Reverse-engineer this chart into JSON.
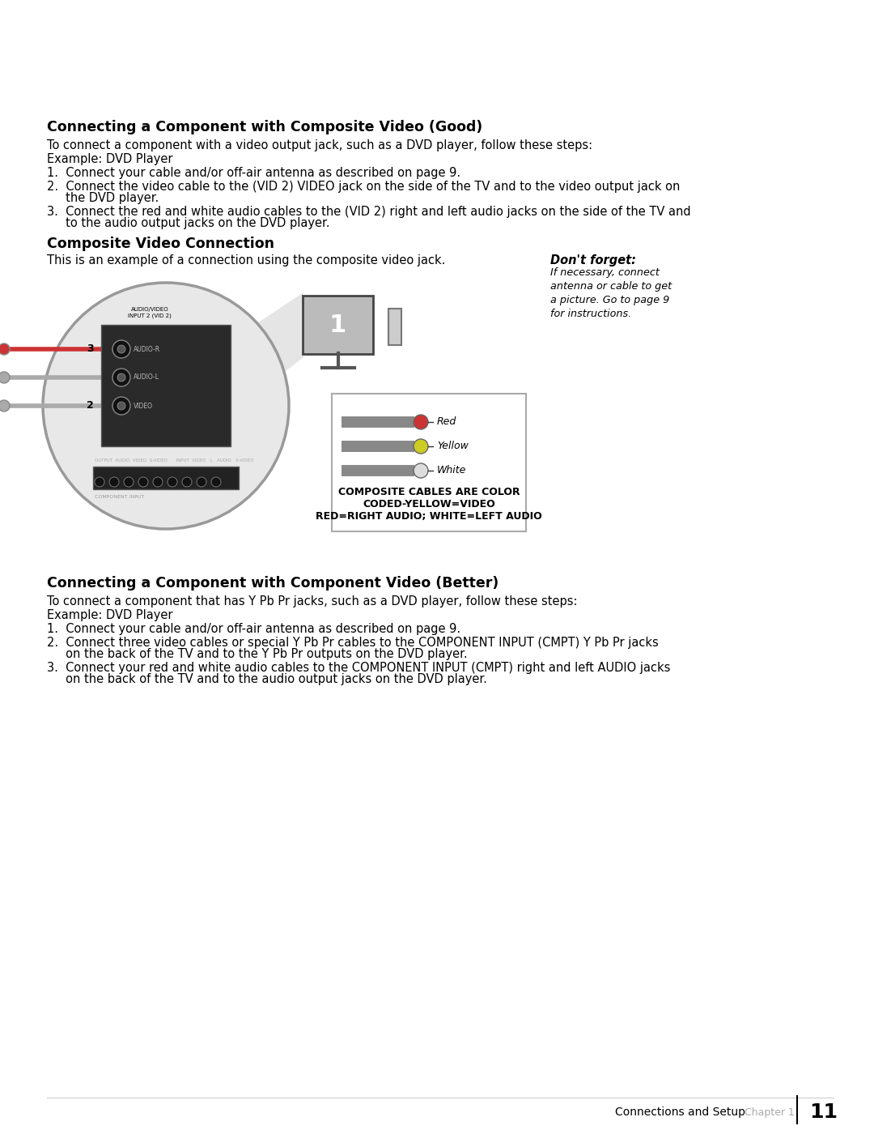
{
  "bg_color": "#ffffff",
  "section1_title": "Connecting a Component with Composite Video (Good)",
  "section1_intro": "To connect a component with a video output jack, such as a DVD player, follow these steps:",
  "section1_example": "Example: DVD Player",
  "section1_step1": "1.  Connect your cable and/or off-air antenna as described on page 9.",
  "section1_step2a": "2.  Connect the video cable to the (VID 2) VIDEO jack on the side of the TV and to the video output jack on",
  "section1_step2b": "     the DVD player.",
  "section1_step3a": "3.  Connect the red and white audio cables to the (VID 2) right and left audio jacks on the side of the TV and",
  "section1_step3b": "     to the audio output jacks on the DVD player.",
  "section2_title": "Composite Video Connection",
  "section2_intro": "This is an example of a connection using the composite video jack.",
  "dont_forget_title": "Don't forget:",
  "dont_forget_text": "If necessary, connect\nantenna or cable to get\na picture. Go to page 9\nfor instructions.",
  "cable_box_line1": "COMPOSITE CABLES ARE COLOR",
  "cable_box_line2": "CODED-YELLOW=VIDEO",
  "cable_box_line3": "RED=RIGHT AUDIO; WHITE=LEFT AUDIO",
  "section3_title": "Connecting a Component with Component Video (Better)",
  "section3_intro": "To connect a component that has Y Pb Pr jacks, such as a DVD player, follow these steps:",
  "section3_example": "Example: DVD Player",
  "section3_step1": "1.  Connect your cable and/or off-air antenna as described on page 9.",
  "section3_step2a": "2.  Connect three video cables or special Y Pb Pr cables to the COMPONENT INPUT (CMPT) Y Pb Pr jacks",
  "section3_step2b": "     on the back of the TV and to the Y Pb Pr outputs on the DVD player.",
  "section3_step3a": "3.  Connect your red and white audio cables to the COMPONENT INPUT (CMPT) right and left AUDIO jacks",
  "section3_step3b": "     on the back of the TV and to the audio output jacks on the DVD player.",
  "footer_text": "Connections and Setup",
  "footer_chapter": "Chapter 1",
  "footer_page": "11"
}
